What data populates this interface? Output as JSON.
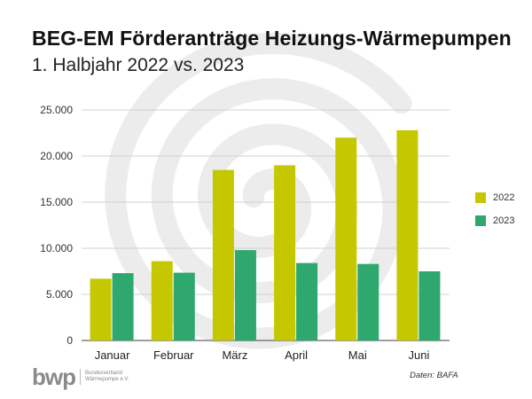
{
  "title": "BEG-EM Förderanträge Heizungs-Wärmepumpen",
  "subtitle": "1. Halbjahr 2022 vs. 2023",
  "source": "Daten: BAFA",
  "logo": {
    "mark": "bwp",
    "line1": "Bundesverband",
    "line2": "Wärmepumpe e.V."
  },
  "colors": {
    "series_2022": "#c5c800",
    "series_2023": "#2ea86f",
    "grid": "#d0d0d0",
    "axis": "#666666",
    "spiral": "#ececec"
  },
  "chart_data": {
    "type": "bar",
    "title": "BEG-EM Förderanträge Heizungs-Wärmepumpen",
    "subtitle": "1. Halbjahr 2022 vs. 2023",
    "categories": [
      "Januar",
      "Februar",
      "März",
      "April",
      "Mai",
      "Juni"
    ],
    "series": [
      {
        "name": "2022",
        "values": [
          6700,
          8600,
          18500,
          19000,
          22000,
          22800
        ]
      },
      {
        "name": "2023",
        "values": [
          7300,
          7350,
          9800,
          8400,
          8300,
          7500
        ]
      }
    ],
    "yticks": [
      "0",
      "5.000",
      "10.000",
      "15.000",
      "20.000",
      "25.000"
    ],
    "ylim": [
      0,
      25000
    ],
    "grid": true,
    "legend_position": "right",
    "xlabel": "",
    "ylabel": ""
  }
}
